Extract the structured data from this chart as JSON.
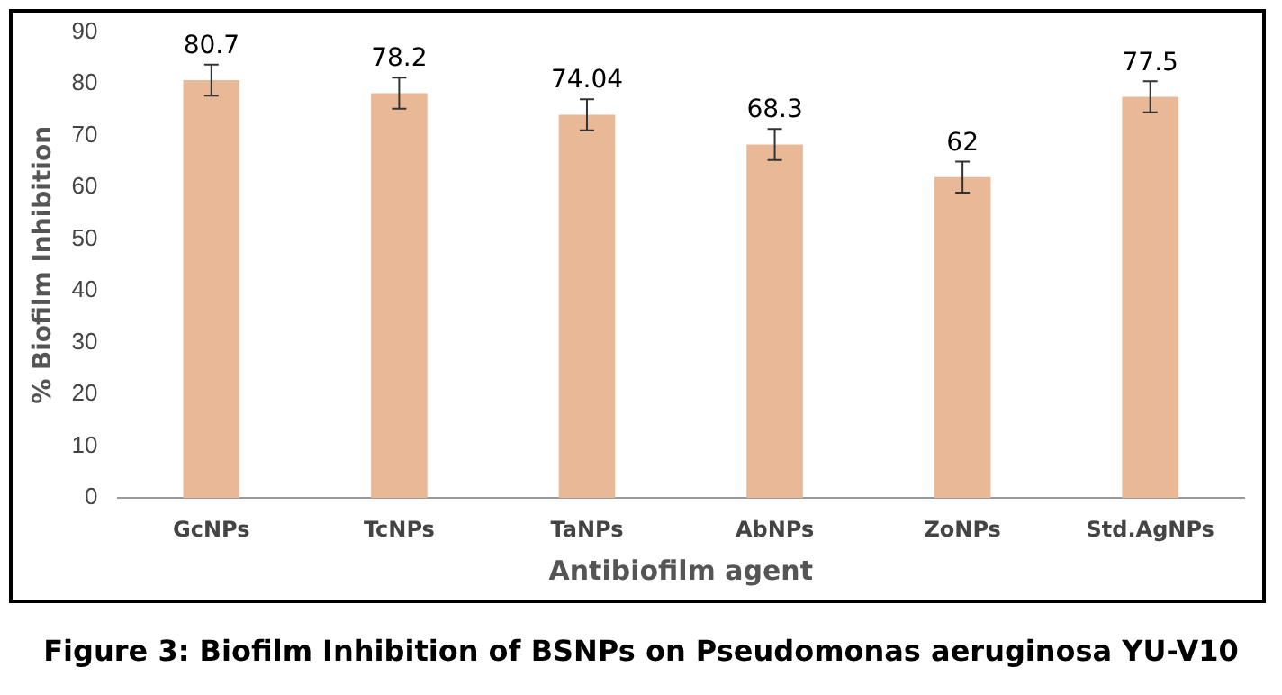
{
  "chart_data": {
    "type": "bar",
    "xlabel": "Antibiofilm agent",
    "ylabel": "% Biofilm Inhibition",
    "categories": [
      "GcNPs",
      "TcNPs",
      "TaNPs",
      "AbNPs",
      "ZoNPs",
      "Std.AgNPs"
    ],
    "values": [
      80.7,
      78.2,
      74.04,
      68.3,
      62,
      77.5
    ],
    "errors": [
      3,
      3,
      3,
      3,
      3,
      3
    ],
    "color": "#e9b896",
    "ylim": [
      0,
      90
    ],
    "yticks": [
      0,
      10,
      20,
      30,
      40,
      50,
      60,
      70,
      80,
      90
    ],
    "grid": false,
    "data_labels": true,
    "annotations": [
      "Figure 3: Biofilm Inhibition of BSNPs on Pseudomonas aeruginosa YU-V10"
    ]
  }
}
